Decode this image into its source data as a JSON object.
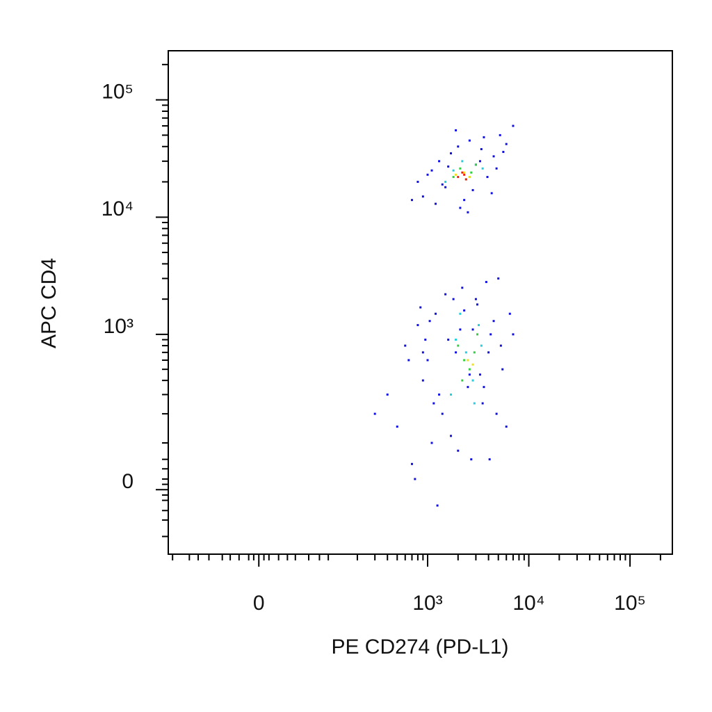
{
  "chart_data": {
    "type": "scatter",
    "xlabel": "PE CD274 (PD-L1)",
    "ylabel": "APC CD4",
    "xscale": {
      "type": "arcsinh",
      "cofactor": 43
    },
    "yscale": {
      "type": "arcsinh",
      "cofactor": 95
    },
    "xlim": [
      -166,
      262144
    ],
    "ylim": [
      -155,
      262144
    ],
    "xticks": [
      {
        "value": 0,
        "label": "0"
      },
      {
        "value": 1000,
        "label": "10³"
      },
      {
        "value": 10000,
        "label": "10⁴"
      },
      {
        "value": 100000,
        "label": "10⁵"
      }
    ],
    "yticks": [
      {
        "value": 0,
        "label": "0"
      },
      {
        "value": 1000,
        "label": "10³"
      },
      {
        "value": 10000,
        "label": "10⁴"
      },
      {
        "value": 100000,
        "label": "10⁵"
      }
    ],
    "xminorticks": [
      -150,
      -100,
      -80,
      -60,
      -40,
      -30,
      -20,
      -10,
      -5,
      5,
      10,
      20,
      30,
      40,
      60,
      80,
      100,
      200,
      300,
      400,
      500,
      600,
      700,
      800,
      900,
      2000,
      3000,
      4000,
      5000,
      6000,
      7000,
      8000,
      9000,
      20000,
      30000,
      40000,
      50000,
      60000,
      70000,
      80000,
      90000,
      200000
    ],
    "yminorticks": [
      -100,
      -60,
      -40,
      -20,
      -10,
      10,
      20,
      40,
      60,
      100,
      200,
      300,
      400,
      500,
      600,
      700,
      800,
      900,
      2000,
      3000,
      4000,
      5000,
      6000,
      7000,
      8000,
      9000,
      20000,
      30000,
      40000,
      50000,
      60000,
      70000,
      80000,
      90000,
      200000
    ],
    "series": [
      {
        "color": "#1010e0",
        "x": [
          800,
          900,
          1100,
          1300,
          1500,
          1700,
          2000,
          2300,
          2600,
          3000,
          3400,
          3900,
          4500,
          5200,
          6000,
          7000,
          1200,
          1600,
          2100,
          2800,
          3600,
          4800,
          1000,
          1400,
          1900,
          2500,
          3300,
          4300,
          700,
          5600,
          400,
          500,
          600,
          700,
          800,
          900,
          1000,
          1100,
          1200,
          1400,
          1600,
          1800,
          2000,
          2200,
          2500,
          2800,
          3100,
          3500,
          4000,
          4500,
          5000,
          5500,
          6000,
          7000,
          650,
          750,
          850,
          950,
          1300,
          1500,
          1700,
          1900,
          2300,
          2700,
          3300,
          3800,
          4200,
          4800,
          5300,
          300,
          1050,
          1250,
          2600,
          3000,
          3600,
          900,
          1150,
          2100,
          4100,
          6500
        ],
        "y": [
          20000,
          15000,
          25000,
          30000,
          18000,
          35000,
          40000,
          14000,
          45000,
          28000,
          38000,
          22000,
          33000,
          50000,
          42000,
          60000,
          13000,
          27000,
          12000,
          17000,
          48000,
          26000,
          23000,
          19000,
          55000,
          11000,
          30000,
          16000,
          14000,
          36000,
          300,
          150,
          800,
          50,
          1200,
          400,
          600,
          100,
          1500,
          200,
          900,
          2000,
          80,
          2500,
          350,
          1100,
          1800,
          250,
          700,
          1300,
          3000,
          500,
          150,
          1000,
          600,
          20,
          1700,
          900,
          300,
          2200,
          120,
          700,
          1600,
          60,
          450,
          2800,
          1000,
          200,
          800,
          200,
          1300,
          -30,
          450,
          2000,
          350,
          700,
          250,
          1100,
          60,
          1500
        ]
      },
      {
        "color": "#20d0e0",
        "x": [
          1500,
          1800,
          2200,
          2600,
          3000,
          3500,
          1900,
          2400,
          2800,
          3200,
          1700,
          2100,
          2500,
          2900,
          3400
        ],
        "y": [
          20000,
          25000,
          30000,
          22000,
          28000,
          26000,
          900,
          700,
          400,
          1200,
          300,
          1500,
          600,
          250,
          800
        ]
      },
      {
        "color": "#30d040",
        "x": [
          1800,
          2100,
          2400,
          2700,
          3000,
          2000,
          2300,
          2600,
          2900,
          2200,
          3100
        ],
        "y": [
          22000,
          26000,
          21000,
          24000,
          28000,
          800,
          600,
          500,
          700,
          400,
          1000
        ]
      },
      {
        "color": "#f0e020",
        "x": [
          1900,
          2300,
          2600,
          2500,
          2800
        ],
        "y": [
          23000,
          24000,
          22000,
          600,
          550
        ]
      },
      {
        "color": "#f02010",
        "x": [
          2000,
          2200,
          2400,
          2300
        ],
        "y": [
          22000,
          24000,
          21000,
          23000
        ]
      }
    ]
  }
}
